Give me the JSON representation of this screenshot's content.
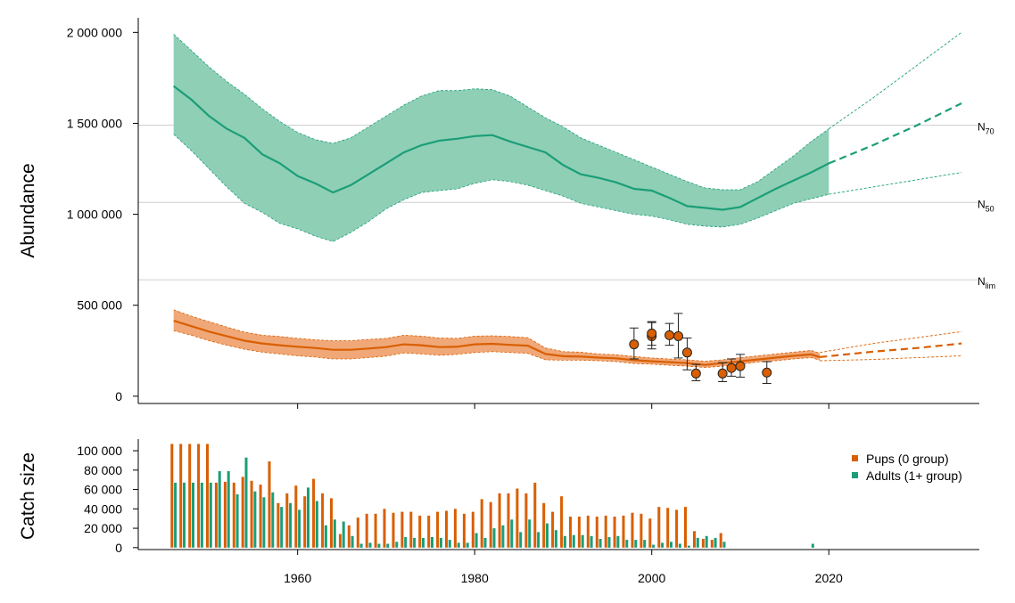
{
  "chart_data": [
    {
      "type": "area",
      "ylabel": "Abundance",
      "xlim": [
        1942,
        2037
      ],
      "ylim": [
        -40000,
        2080000
      ],
      "x_ticks": [
        "1960",
        "1980",
        "2000",
        "2020"
      ],
      "y_ticks": [
        {
          "value": 0,
          "label": "0"
        },
        {
          "value": 500000,
          "label": "500 000"
        },
        {
          "value": 1000000,
          "label": "1 000 000"
        },
        {
          "value": 1500000,
          "label": "1 500 000"
        },
        {
          "value": 2000000,
          "label": "2 000 000"
        }
      ],
      "reference_lines": [
        {
          "name": "N",
          "sub": "70",
          "value": 1490000
        },
        {
          "name": "N",
          "sub": "50",
          "value": 1065000
        },
        {
          "name": "N",
          "sub": "lim",
          "value": 640000
        }
      ],
      "series": [
        {
          "color": "#1b9e77",
          "band_color": "#8ecfb6",
          "x": [
            1946,
            1948,
            1950,
            1952,
            1954,
            1956,
            1958,
            1960,
            1962,
            1964,
            1966,
            1968,
            1970,
            1972,
            1974,
            1976,
            1978,
            1980,
            1982,
            1984,
            1986,
            1988,
            1990,
            1992,
            1994,
            1996,
            1998,
            2000,
            2002,
            2004,
            2006,
            2008,
            2010,
            2012,
            2014,
            2016,
            2018,
            2020
          ],
          "mean": [
            1705000,
            1630000,
            1540000,
            1470000,
            1420000,
            1330000,
            1280000,
            1210000,
            1170000,
            1120000,
            1160000,
            1220000,
            1280000,
            1340000,
            1380000,
            1405000,
            1415000,
            1430000,
            1435000,
            1400000,
            1370000,
            1340000,
            1270000,
            1220000,
            1200000,
            1175000,
            1140000,
            1130000,
            1090000,
            1045000,
            1035000,
            1025000,
            1040000,
            1090000,
            1140000,
            1185000,
            1230000,
            1280000
          ],
          "lower": [
            1440000,
            1350000,
            1250000,
            1150000,
            1060000,
            1010000,
            950000,
            920000,
            880000,
            850000,
            900000,
            960000,
            1030000,
            1080000,
            1120000,
            1130000,
            1140000,
            1170000,
            1190000,
            1180000,
            1160000,
            1130000,
            1100000,
            1060000,
            1040000,
            1020000,
            1000000,
            990000,
            970000,
            945000,
            935000,
            930000,
            945000,
            980000,
            1020000,
            1060000,
            1085000,
            1110000
          ],
          "upper": [
            1990000,
            1900000,
            1810000,
            1730000,
            1660000,
            1580000,
            1510000,
            1450000,
            1410000,
            1390000,
            1420000,
            1480000,
            1540000,
            1600000,
            1650000,
            1680000,
            1680000,
            1690000,
            1685000,
            1650000,
            1590000,
            1530000,
            1480000,
            1420000,
            1380000,
            1340000,
            1300000,
            1260000,
            1220000,
            1180000,
            1145000,
            1135000,
            1135000,
            1180000,
            1250000,
            1320000,
            1400000,
            1470000
          ],
          "projection": {
            "x": [
              2020,
              2025,
              2030,
              2035
            ],
            "mean": [
              1280000,
              1380000,
              1490000,
              1610000
            ],
            "lower": [
              1110000,
              1150000,
              1190000,
              1230000
            ],
            "upper": [
              1470000,
              1640000,
              1820000,
              2000000
            ]
          }
        },
        {
          "color": "#d95f02",
          "band_color": "#f0a878",
          "x": [
            1946,
            1948,
            1950,
            1952,
            1954,
            1956,
            1958,
            1960,
            1962,
            1964,
            1966,
            1968,
            1970,
            1972,
            1974,
            1976,
            1978,
            1980,
            1982,
            1984,
            1986,
            1988,
            1990,
            1992,
            1994,
            1996,
            1998,
            2000,
            2002,
            2004,
            2006,
            2008,
            2010,
            2012,
            2014,
            2016,
            2018,
            2019
          ],
          "mean": [
            415000,
            385000,
            355000,
            330000,
            305000,
            290000,
            280000,
            272000,
            265000,
            255000,
            255000,
            262000,
            270000,
            285000,
            280000,
            270000,
            272000,
            285000,
            288000,
            282000,
            278000,
            232000,
            220000,
            218000,
            212000,
            208000,
            198000,
            192000,
            187000,
            182000,
            172000,
            182000,
            192000,
            202000,
            212000,
            222000,
            230000,
            215000
          ],
          "lower": [
            360000,
            335000,
            305000,
            280000,
            258000,
            242000,
            232000,
            222000,
            215000,
            205000,
            205000,
            212000,
            220000,
            238000,
            232000,
            225000,
            230000,
            240000,
            245000,
            240000,
            235000,
            200000,
            198000,
            198000,
            195000,
            190000,
            180000,
            176000,
            170000,
            165000,
            158000,
            165000,
            175000,
            188000,
            195000,
            205000,
            212000,
            198000
          ],
          "upper": [
            475000,
            440000,
            410000,
            380000,
            352000,
            335000,
            328000,
            318000,
            310000,
            305000,
            305000,
            312000,
            318000,
            335000,
            330000,
            320000,
            318000,
            330000,
            332000,
            328000,
            322000,
            265000,
            245000,
            242000,
            232000,
            228000,
            218000,
            210000,
            205000,
            200000,
            192000,
            200000,
            212000,
            222000,
            232000,
            242000,
            252000,
            235000
          ],
          "projection": {
            "x": [
              2019,
              2025,
              2030,
              2035
            ],
            "mean": [
              215000,
              245000,
              265000,
              290000
            ],
            "lower": [
              195000,
              202000,
              212000,
              222000
            ],
            "upper": [
              240000,
              290000,
              322000,
              355000
            ]
          }
        }
      ],
      "observations": {
        "color": "#d95f02",
        "x": [
          1998,
          2000,
          2000,
          2002,
          2003,
          2004,
          2005,
          2008,
          2009,
          2010,
          2013
        ],
        "y": [
          285000,
          330000,
          345000,
          335000,
          330000,
          240000,
          125000,
          125000,
          155000,
          165000,
          130000
        ],
        "lower": [
          205000,
          260000,
          280000,
          280000,
          210000,
          145000,
          85000,
          80000,
          110000,
          105000,
          70000
        ],
        "upper": [
          375000,
          410000,
          405000,
          400000,
          455000,
          320000,
          175000,
          185000,
          205000,
          230000,
          190000
        ]
      }
    },
    {
      "type": "bar",
      "ylabel": "Catch size",
      "ylim": [
        -2000,
        112000
      ],
      "y_ticks": [
        {
          "value": 0,
          "label": "0"
        },
        {
          "value": 20000,
          "label": "20 000"
        },
        {
          "value": 40000,
          "label": "40 000"
        },
        {
          "value": 60000,
          "label": "60 000"
        },
        {
          "value": 80000,
          "label": "80 000"
        },
        {
          "value": 100000,
          "label": "100 000"
        }
      ],
      "legend": "top-right",
      "series": [
        {
          "name": "Pups (0 group)",
          "color": "#d95f02",
          "years": [
            1946,
            1947,
            1948,
            1949,
            1950,
            1951,
            1952,
            1953,
            1954,
            1955,
            1956,
            1957,
            1958,
            1959,
            1960,
            1961,
            1962,
            1963,
            1964,
            1965,
            1966,
            1967,
            1968,
            1969,
            1970,
            1971,
            1972,
            1973,
            1974,
            1975,
            1976,
            1977,
            1978,
            1979,
            1980,
            1981,
            1982,
            1983,
            1984,
            1985,
            1986,
            1987,
            1988,
            1989,
            1990,
            1991,
            1992,
            1993,
            1994,
            1995,
            1996,
            1997,
            1998,
            1999,
            2000,
            2001,
            2002,
            2003,
            2004,
            2005,
            2006,
            2007,
            2008
          ],
          "values": [
            107000,
            107000,
            107000,
            107000,
            107000,
            67000,
            68000,
            67000,
            73000,
            69000,
            65000,
            89000,
            46000,
            56000,
            64000,
            53000,
            71000,
            56000,
            51000,
            14000,
            23000,
            31000,
            35000,
            35000,
            40000,
            36000,
            37000,
            37000,
            33000,
            33000,
            37000,
            38000,
            40000,
            35000,
            37000,
            50000,
            47000,
            56000,
            56000,
            61000,
            56000,
            67000,
            46000,
            37000,
            53000,
            32000,
            32000,
            33000,
            32000,
            33000,
            32000,
            33000,
            36000,
            35000,
            30000,
            42000,
            41000,
            39000,
            42000,
            17000,
            9000,
            8000,
            15000
          ]
        },
        {
          "name": "Adults (1+ group)",
          "color": "#1b9e77",
          "years": [
            1946,
            1947,
            1948,
            1949,
            1950,
            1951,
            1952,
            1953,
            1954,
            1955,
            1956,
            1957,
            1958,
            1959,
            1960,
            1961,
            1962,
            1963,
            1964,
            1965,
            1966,
            1967,
            1968,
            1969,
            1970,
            1971,
            1972,
            1973,
            1974,
            1975,
            1976,
            1977,
            1978,
            1979,
            1980,
            1981,
            1982,
            1983,
            1984,
            1985,
            1986,
            1987,
            1988,
            1989,
            1990,
            1991,
            1992,
            1993,
            1994,
            1995,
            1996,
            1997,
            1998,
            1999,
            2000,
            2001,
            2002,
            2003,
            2004,
            2005,
            2006,
            2007,
            2008,
            2018
          ],
          "values": [
            67000,
            67000,
            67000,
            67000,
            67000,
            79000,
            79000,
            55000,
            93000,
            58000,
            52000,
            57000,
            42000,
            46000,
            39000,
            62000,
            48000,
            23000,
            29000,
            27000,
            12000,
            4000,
            5000,
            4000,
            4000,
            6000,
            11000,
            10000,
            10000,
            11000,
            10000,
            8000,
            5000,
            5000,
            15000,
            10000,
            20000,
            23000,
            29000,
            16000,
            29000,
            16000,
            25000,
            18000,
            12000,
            13000,
            13000,
            12000,
            9000,
            11000,
            12000,
            8000,
            8000,
            8000,
            3000,
            5000,
            6000,
            4000,
            2000,
            10000,
            12000,
            10000,
            6000,
            4000
          ]
        }
      ]
    }
  ]
}
